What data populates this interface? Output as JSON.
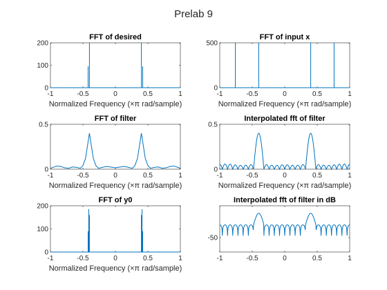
{
  "figure": {
    "title": "Prelab 9"
  },
  "chart_data": [
    {
      "type": "line",
      "title": "FFT of desired",
      "xlabel": "Normalized Frequency (×π rad/sample)",
      "xlim": [
        -1,
        1
      ],
      "ylim": [
        0,
        200
      ],
      "xticks": [
        -1,
        -0.5,
        0,
        0.5,
        1
      ],
      "xtick_labels": [
        "-1",
        "-0.5",
        "0",
        "0.5",
        "1"
      ],
      "yticks": [
        0,
        100,
        200
      ],
      "ytick_labels": [
        "0",
        "100",
        "200"
      ],
      "series": [
        {
          "x": [
            -1,
            -0.42,
            -0.42,
            -0.42,
            -0.4,
            -0.4,
            -0.4,
            -0.38,
            0.38,
            0.4,
            0.4,
            0.4,
            0.42,
            0.42,
            0.42,
            1
          ],
          "y": [
            0,
            0,
            95,
            0,
            0,
            200,
            0,
            0,
            0,
            0,
            200,
            0,
            0,
            95,
            0,
            0
          ]
        }
      ]
    },
    {
      "type": "line",
      "title": "FFT of input x",
      "xlabel": "Normalized Frequency (×π rad/sample)",
      "xlim": [
        -1,
        1
      ],
      "ylim": [
        0,
        500
      ],
      "xticks": [
        -1,
        -0.5,
        0,
        0.5,
        1
      ],
      "xtick_labels": [
        "-1",
        "-0.5",
        "0",
        "0.5",
        "1"
      ],
      "yticks": [
        0,
        500
      ],
      "ytick_labels": [
        "0",
        "500"
      ],
      "series": [
        {
          "x": [
            -1,
            -0.76,
            -0.76,
            -0.76,
            -0.4,
            -0.4,
            -0.4,
            0.4,
            0.4,
            0.4,
            0.76,
            0.76,
            0.76,
            1
          ],
          "y": [
            0,
            0,
            512,
            0,
            0,
            512,
            0,
            0,
            512,
            0,
            0,
            512,
            0,
            0
          ]
        }
      ]
    },
    {
      "type": "line",
      "title": "FFT of filter",
      "xlabel": "Normalized Frequency (×π rad/sample)",
      "xlim": [
        -1,
        1
      ],
      "ylim": [
        0,
        0.5
      ],
      "xticks": [
        -1,
        -0.5,
        0,
        0.5,
        1
      ],
      "xtick_labels": [
        "-1",
        "-0.5",
        "0",
        "0.5",
        "1"
      ],
      "yticks": [
        0,
        0.5
      ],
      "ytick_labels": [
        "0",
        "0.5"
      ],
      "series": [
        {
          "x": [
            -1,
            -0.96,
            -0.9,
            -0.84,
            -0.78,
            -0.72,
            -0.66,
            -0.6,
            -0.54,
            -0.5,
            -0.46,
            -0.43,
            -0.4,
            -0.37,
            -0.34,
            -0.3,
            -0.26,
            -0.2,
            -0.14,
            -0.08,
            0,
            0.08,
            0.14,
            0.2,
            0.26,
            0.3,
            0.34,
            0.37,
            0.4,
            0.43,
            0.46,
            0.5,
            0.54,
            0.6,
            0.66,
            0.72,
            0.78,
            0.84,
            0.9,
            0.96,
            1
          ],
          "y": [
            0.01,
            0.02,
            0.035,
            0.03,
            0.015,
            0.01,
            0.025,
            0.02,
            0.01,
            0.04,
            0.12,
            0.26,
            0.4,
            0.26,
            0.12,
            0.04,
            0.01,
            0.02,
            0.03,
            0.025,
            0.015,
            0.025,
            0.03,
            0.02,
            0.01,
            0.04,
            0.12,
            0.26,
            0.4,
            0.26,
            0.12,
            0.04,
            0.01,
            0.02,
            0.025,
            0.01,
            0.015,
            0.03,
            0.035,
            0.02,
            0.01
          ]
        }
      ]
    },
    {
      "type": "line",
      "title": "Interpolated fft of filter",
      "xlabel": "Normalized Frequency (×π rad/sample)",
      "xlim": [
        -1,
        1
      ],
      "ylim": [
        0,
        0.5
      ],
      "xticks": [
        -1,
        -0.5,
        0,
        0.5,
        1
      ],
      "xtick_labels": [
        "-1",
        "-0.5",
        "0",
        "0.5",
        "1"
      ],
      "yticks": [
        0,
        0.5
      ],
      "ytick_labels": [
        "0",
        "0.5"
      ],
      "series": [
        {
          "generator": "sinc_lobes",
          "peaks": [
            -0.4,
            0.4
          ],
          "peak_value": 0.4,
          "lobe_spacing": 0.08,
          "sidelobe_level": 0.05,
          "samples": 400
        }
      ]
    },
    {
      "type": "line",
      "title": "FFT of y0",
      "xlabel": "Normalized Frequency (×π rad/sample)",
      "xlim": [
        -1,
        1
      ],
      "ylim": [
        0,
        200
      ],
      "xticks": [
        -1,
        -0.5,
        0,
        0.5,
        1
      ],
      "xtick_labels": [
        "-1",
        "-0.5",
        "0",
        "0.5",
        "1"
      ],
      "yticks": [
        0,
        100,
        200
      ],
      "ytick_labels": [
        "0",
        "100",
        "200"
      ],
      "series": [
        {
          "x": [
            -1,
            -0.42,
            -0.42,
            -0.42,
            -0.41,
            -0.41,
            -0.41,
            -0.4,
            -0.4,
            -0.4,
            0.4,
            0.4,
            0.4,
            0.41,
            0.41,
            0.41,
            0.42,
            0.42,
            0.42,
            1
          ],
          "y": [
            0,
            0,
            90,
            0,
            0,
            185,
            0,
            0,
            160,
            0,
            0,
            160,
            0,
            0,
            185,
            0,
            0,
            90,
            0,
            0
          ]
        }
      ]
    },
    {
      "type": "line",
      "title": "Interpolated fft of filter in dB",
      "xlabel": "",
      "xlim": [
        -1,
        1
      ],
      "ylim": [
        -75,
        5
      ],
      "xticks": [
        -1,
        -0.5,
        0,
        0.5,
        1
      ],
      "xtick_labels": [
        "-1",
        "-0.5",
        "0",
        "0.5",
        "1"
      ],
      "yticks": [
        -50
      ],
      "ytick_labels": [
        "-50"
      ],
      "series": [
        {
          "generator": "sinc_lobes_db",
          "peaks": [
            -0.4,
            0.4
          ],
          "peak_db": -8,
          "lobe_spacing": 0.08,
          "sidelobe_db": -28,
          "null_db": -72,
          "samples": 500
        }
      ]
    }
  ]
}
